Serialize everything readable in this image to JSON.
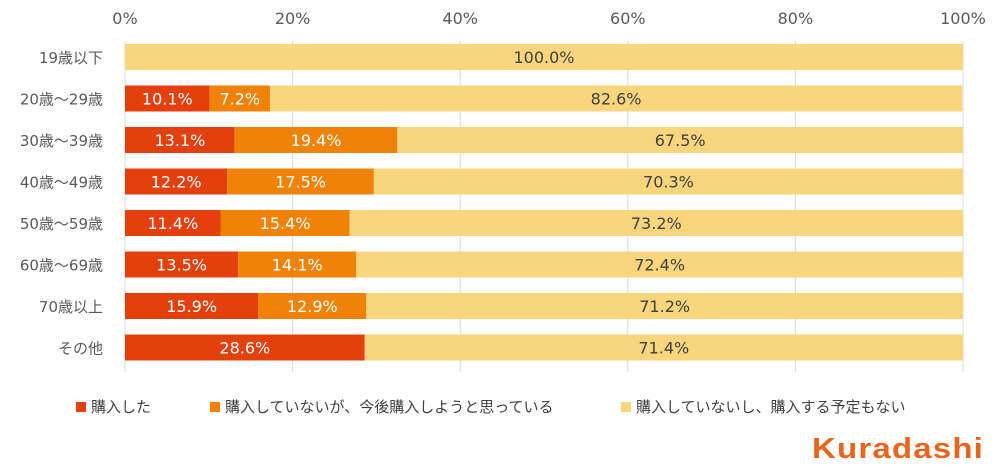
{
  "chart_data": {
    "type": "bar",
    "orientation": "horizontal",
    "stacked": true,
    "categories": [
      "19歳以下",
      "20歳～29歳",
      "30歳～39歳",
      "40歳～49歳",
      "50歳～59歳",
      "60歳～69歳",
      "70歳以上",
      "その他"
    ],
    "series": [
      {
        "name": "購入した",
        "color": "#E4400E",
        "values": [
          0,
          10.1,
          13.1,
          12.2,
          11.4,
          13.5,
          15.9,
          28.6
        ],
        "labels": [
          "",
          "10.1%",
          "13.1%",
          "12.2%",
          "11.4%",
          "13.5%",
          "15.9%",
          "28.6%"
        ]
      },
      {
        "name": "購入していないが、今後購入しようと思っている",
        "color": "#F08307",
        "values": [
          0,
          7.2,
          19.4,
          17.5,
          15.4,
          14.1,
          12.9,
          0
        ],
        "labels": [
          "",
          "7.2%",
          "19.4%",
          "17.5%",
          "15.4%",
          "14.1%",
          "12.9%",
          ""
        ]
      },
      {
        "name": "購入していないし、購入する予定もない",
        "color": "#F9D57E",
        "values": [
          100.0,
          82.6,
          67.5,
          70.3,
          73.2,
          72.4,
          71.2,
          71.4
        ],
        "labels": [
          "100.0%",
          "82.6%",
          "67.5%",
          "70.3%",
          "73.2%",
          "72.4%",
          "71.2%",
          "71.4%"
        ]
      }
    ],
    "xlim": [
      0,
      100
    ],
    "xticks": [
      "0%",
      "20%",
      "40%",
      "60%",
      "80%",
      "100%"
    ],
    "xtick_values": [
      0,
      20,
      40,
      60,
      80,
      100
    ],
    "grid": true,
    "legend_position": "bottom"
  },
  "legend": {
    "items": [
      "購入した",
      "購入していないが、今後購入しようと思っている",
      "購入していないし、購入する予定もない"
    ]
  },
  "brand": {
    "logo_text": "Kuradashi",
    "logo_color": "#E9651E"
  }
}
